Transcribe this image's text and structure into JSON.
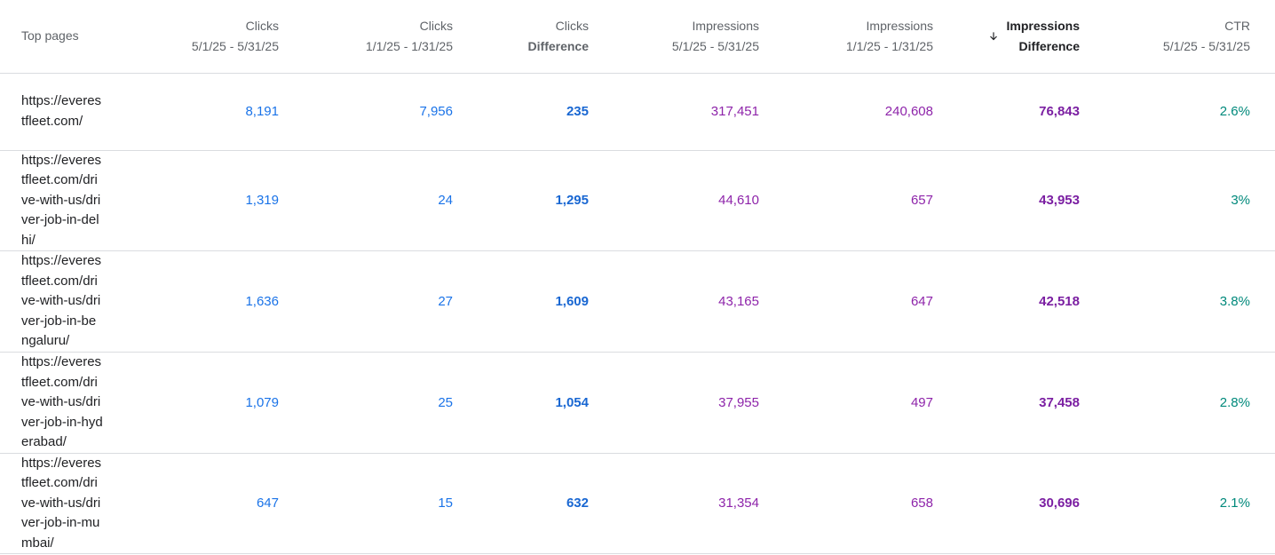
{
  "colors": {
    "clicks": "#1a73e8",
    "clicks_diff": "#1967d2",
    "impressions": "#8e24aa",
    "impressions_diff": "#7b1fa2",
    "ctr": "#00897b",
    "divider": "#dadce0",
    "header_text": "#5f6368"
  },
  "table": {
    "columns": [
      {
        "line1": "Top pages",
        "line2": ""
      },
      {
        "line1": "Clicks",
        "line2": "5/1/25 - 5/31/25"
      },
      {
        "line1": "Clicks",
        "line2": "1/1/25 - 1/31/25"
      },
      {
        "line1": "Clicks",
        "line2": "Difference"
      },
      {
        "line1": "Impressions",
        "line2": "5/1/25 - 5/31/25"
      },
      {
        "line1": "Impressions",
        "line2": "1/1/25 - 1/31/25"
      },
      {
        "line1": "Impressions",
        "line2": "Difference",
        "sort_icon": "arrow-down-icon",
        "sorted": "descending"
      },
      {
        "line1": "CTR",
        "line2": "5/1/25 - 5/31/25"
      }
    ],
    "rows": [
      {
        "url": "https://everestfleet.com/",
        "clicks_may": "8,191",
        "clicks_jan": "7,956",
        "clicks_diff": "235",
        "impr_may": "317,451",
        "impr_jan": "240,608",
        "impr_diff": "76,843",
        "ctr_may": "2.6%"
      },
      {
        "url": "https://everestfleet.com/drive-with-us/driver-job-in-delhi/",
        "clicks_may": "1,319",
        "clicks_jan": "24",
        "clicks_diff": "1,295",
        "impr_may": "44,610",
        "impr_jan": "657",
        "impr_diff": "43,953",
        "ctr_may": "3%"
      },
      {
        "url": "https://everestfleet.com/drive-with-us/driver-job-in-bengaluru/",
        "clicks_may": "1,636",
        "clicks_jan": "27",
        "clicks_diff": "1,609",
        "impr_may": "43,165",
        "impr_jan": "647",
        "impr_diff": "42,518",
        "ctr_may": "3.8%"
      },
      {
        "url": "https://everestfleet.com/drive-with-us/driver-job-in-hyderabad/",
        "clicks_may": "1,079",
        "clicks_jan": "25",
        "clicks_diff": "1,054",
        "impr_may": "37,955",
        "impr_jan": "497",
        "impr_diff": "37,458",
        "ctr_may": "2.8%"
      },
      {
        "url": "https://everestfleet.com/drive-with-us/driver-job-in-mumbai/",
        "clicks_may": "647",
        "clicks_jan": "15",
        "clicks_diff": "632",
        "impr_may": "31,354",
        "impr_jan": "658",
        "impr_diff": "30,696",
        "ctr_may": "2.1%"
      }
    ]
  }
}
